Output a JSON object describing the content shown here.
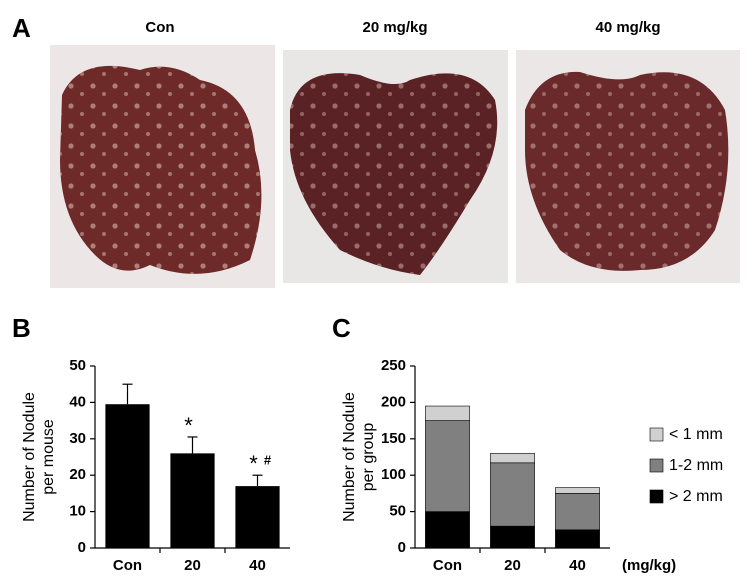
{
  "panel_a": {
    "label": "A",
    "captions": [
      "Con",
      "20 mg/kg",
      "40 mg/kg"
    ]
  },
  "chart_data": [
    {
      "type": "bar",
      "panel_label": "B",
      "y_label": [
        "Number of Nodule",
        "per mouse"
      ],
      "categories": [
        "Con",
        "20",
        "40"
      ],
      "values": [
        39.5,
        26,
        17
      ],
      "errors": [
        5.5,
        4.5,
        3
      ],
      "color": "#000000",
      "annotations": [
        null,
        [
          "*"
        ],
        [
          "*",
          "#"
        ]
      ],
      "ylim": [
        0,
        50
      ],
      "yticks": [
        0,
        10,
        20,
        30,
        40,
        50
      ]
    },
    {
      "type": "stacked_bar",
      "panel_label": "C",
      "y_label": [
        "Number of Nodule",
        "per group"
      ],
      "x_unit": "(mg/kg)",
      "categories": [
        "Con",
        "20",
        "40"
      ],
      "series": [
        {
          "name": "> 2 mm",
          "color": "#000000",
          "values": [
            50,
            30,
            25
          ]
        },
        {
          "name": "1-2 mm",
          "color": "#808080",
          "values": [
            125,
            87,
            50
          ]
        },
        {
          "name": "< 1 mm",
          "color": "#d0d0d0",
          "values": [
            20,
            13,
            8
          ]
        }
      ],
      "legend": "right",
      "ylim": [
        0,
        250
      ],
      "yticks": [
        0,
        50,
        100,
        150,
        200,
        250
      ]
    }
  ]
}
